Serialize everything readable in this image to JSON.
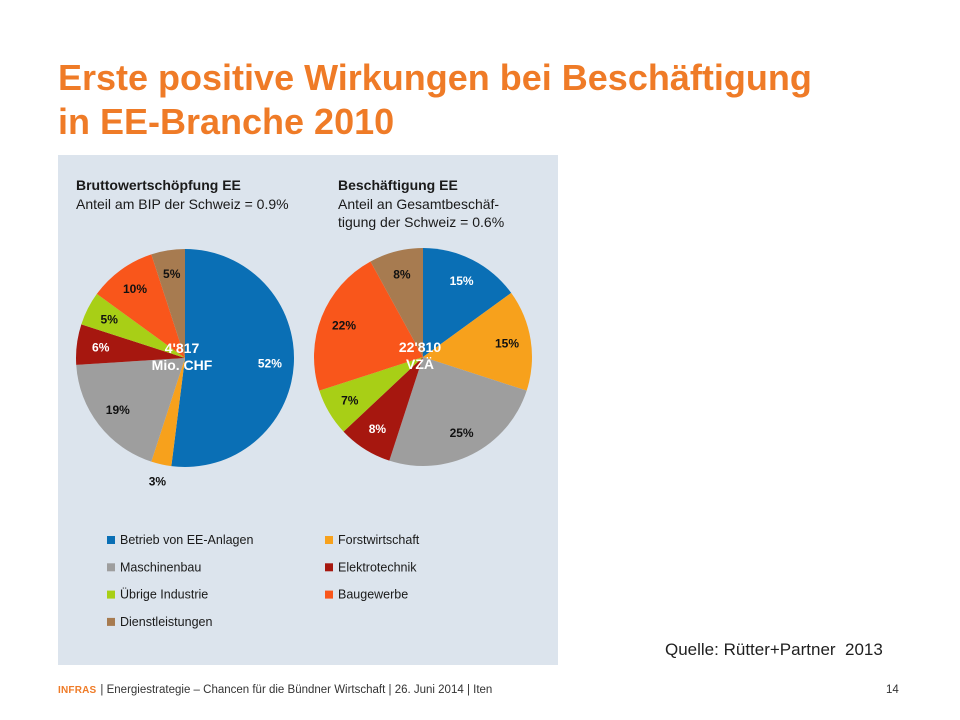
{
  "slide": {
    "title": [
      "Erste positive Wirkungen bei Beschäftigung",
      "in EE-Branche 2010"
    ],
    "source": "Quelle: Rütter+Partner  2013",
    "footer": {
      "logo": "INFRAS",
      "text": "| Energiestrategie – Chancen für die Bündner Wirtschaft | 26. Juni 2014 | Iten",
      "page_number": "14"
    }
  },
  "colors": {
    "title": "#ef7b27",
    "logo": "#ef7b27",
    "panel_background": "#dce4ed"
  },
  "legend": {
    "placement": "bottom",
    "colors": [
      "#0a6fb5",
      "#f7a11c",
      "#9e9e9e",
      "#a6170f",
      "#a8cf16",
      "#f9561b",
      "#a77b50"
    ]
  },
  "chart_data": [
    {
      "type": "pie",
      "title": "Bruttowertschöpfung EE",
      "subtitle": [
        "Anteil am BIP der Schweiz = 0.9%"
      ],
      "center_label": [
        "4'817",
        "Mio. CHF"
      ],
      "categories": [
        "Betrieb von EE-Anlagen",
        "Forstwirtschaft",
        "Maschinenbau",
        "Elektrotechnik",
        "Übrige Industrie",
        "Baugewerbe",
        "Dienstleistungen"
      ],
      "values": [
        52,
        3,
        19,
        6,
        5,
        10,
        5
      ],
      "value_labels": [
        "52%",
        "3%",
        "19%",
        "6%",
        "5%",
        "10%",
        "5%"
      ]
    },
    {
      "type": "pie",
      "title": "Beschäftigung EE",
      "subtitle": [
        "Anteil an Gesamtbeschäf-",
        "tigung der Schweiz = 0.6%"
      ],
      "center_label": [
        "22'810",
        "VZÄ"
      ],
      "categories": [
        "Betrieb von EE-Anlagen",
        "Forstwirtschaft",
        "Maschinenbau",
        "Elektrotechnik",
        "Übrige Industrie",
        "Baugewerbe",
        "Dienstleistungen"
      ],
      "values": [
        15,
        15,
        25,
        8,
        7,
        22,
        8
      ],
      "value_labels": [
        "15%",
        "15%",
        "25%",
        "8%",
        "7%",
        "22%",
        "8%"
      ]
    }
  ]
}
